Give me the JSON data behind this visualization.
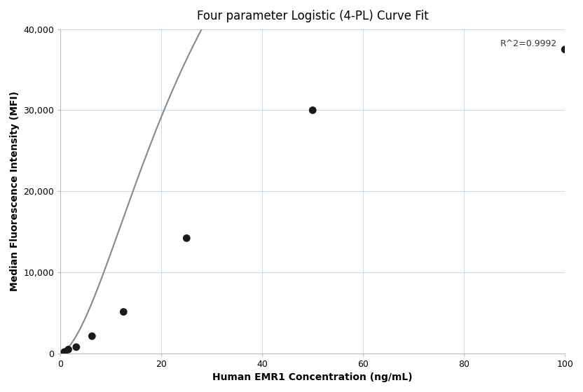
{
  "title": "Four parameter Logistic (4-PL) Curve Fit",
  "xlabel": "Human EMR1 Concentration (ng/mL)",
  "ylabel": "Median Fluorescence Intensity (MFI)",
  "r_squared": "R^2=0.9992",
  "scatter_x": [
    0.78,
    1.56,
    3.125,
    6.25,
    12.5,
    25,
    50,
    100
  ],
  "scatter_y": [
    150,
    450,
    750,
    2100,
    5100,
    14200,
    30000,
    37500
  ],
  "xlim": [
    0,
    100
  ],
  "ylim": [
    0,
    40000
  ],
  "yticks": [
    0,
    10000,
    20000,
    30000,
    40000
  ],
  "ytick_labels": [
    "0",
    "10,000",
    "20,000",
    "30,000",
    "40,000"
  ],
  "xticks": [
    0,
    20,
    40,
    60,
    80,
    100
  ],
  "dot_color": "#1a1a1a",
  "dot_size": 60,
  "curve_color": "#888888",
  "curve_linewidth": 1.5,
  "grid_color": "#c8d8e8",
  "grid_alpha": 1.0,
  "background_color": "#ffffff",
  "title_fontsize": 12,
  "axis_label_fontsize": 10,
  "tick_fontsize": 9,
  "annotation_fontsize": 9,
  "4pl_A": 50,
  "4pl_B": 1.65,
  "4pl_C": 28,
  "4pl_D": 80000
}
